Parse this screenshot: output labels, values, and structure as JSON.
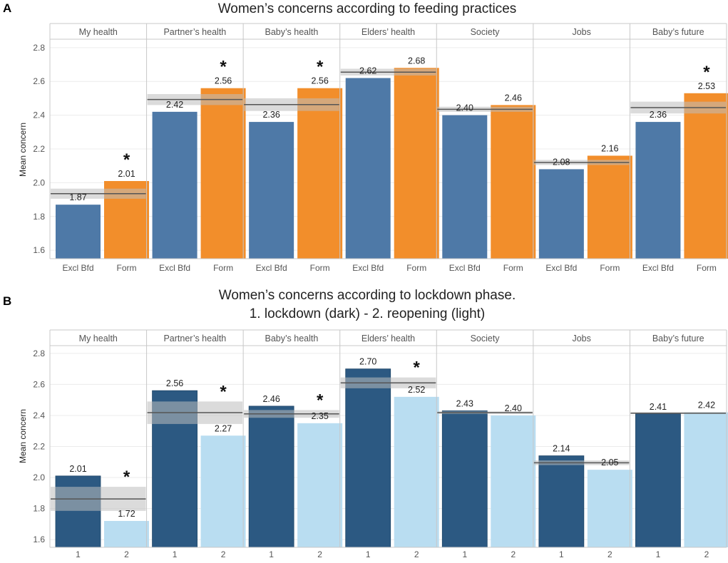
{
  "chart_data": [
    {
      "type": "bar",
      "panel_label": "A",
      "title_lines": [
        "Women’s concerns according to feeding practices"
      ],
      "ylabel": "Mean concern",
      "ylim": [
        1.55,
        2.85
      ],
      "yticks": [
        "1.6",
        "1.8",
        "2.0",
        "2.2",
        "2.4",
        "2.6",
        "2.8"
      ],
      "categories": [
        "Excl Bfd",
        "Form"
      ],
      "colors": [
        "#4e79a7",
        "#f28e2b"
      ],
      "facets": [
        {
          "name": "My health",
          "values": [
            1.87,
            2.01
          ],
          "labels": [
            "1.87",
            "2.01"
          ],
          "mean": 1.935,
          "band": [
            1.905,
            1.965
          ],
          "star": "*",
          "star_index": 1
        },
        {
          "name": "Partner’s health",
          "values": [
            2.42,
            2.56
          ],
          "labels": [
            "2.42",
            "2.56"
          ],
          "mean": 2.493,
          "band": [
            2.46,
            2.525
          ],
          "star": "*",
          "star_index": 1
        },
        {
          "name": "Baby’s health",
          "values": [
            2.36,
            2.56
          ],
          "labels": [
            "2.36",
            "2.56"
          ],
          "mean": 2.463,
          "band": [
            2.425,
            2.5
          ],
          "star": "*",
          "star_index": 1
        },
        {
          "name": "Elders’ health",
          "values": [
            2.62,
            2.68
          ],
          "labels": [
            "2.62",
            "2.68"
          ],
          "mean": 2.655,
          "band": [
            2.635,
            2.675
          ],
          "star": "",
          "star_index": 1
        },
        {
          "name": "Society",
          "values": [
            2.4,
            2.46
          ],
          "labels": [
            "2.40",
            "2.46"
          ],
          "mean": 2.435,
          "band": [
            2.42,
            2.45
          ],
          "star": "",
          "star_index": 1
        },
        {
          "name": "Jobs",
          "values": [
            2.08,
            2.16
          ],
          "labels": [
            "2.08",
            "2.16"
          ],
          "mean": 2.12,
          "band": [
            2.105,
            2.135
          ],
          "star": "",
          "star_index": 1
        },
        {
          "name": "Baby’s future",
          "values": [
            2.36,
            2.53
          ],
          "labels": [
            "2.36",
            "2.53"
          ],
          "mean": 2.445,
          "band": [
            2.41,
            2.48
          ],
          "star": "*",
          "star_index": 1
        }
      ]
    },
    {
      "type": "bar",
      "panel_label": "B",
      "title_lines": [
        "Women’s concerns according to lockdown phase.",
        "1. lockdown (dark) - 2. reopening (light)"
      ],
      "ylabel": "Mean concern",
      "ylim": [
        1.55,
        2.85
      ],
      "yticks": [
        "1.6",
        "1.8",
        "2.0",
        "2.2",
        "2.4",
        "2.6",
        "2.8"
      ],
      "categories": [
        "1",
        "2"
      ],
      "colors": [
        "#2c5982",
        "#b9ddf1"
      ],
      "facets": [
        {
          "name": "My health",
          "values": [
            2.01,
            1.72
          ],
          "labels": [
            "2.01",
            "1.72"
          ],
          "mean": 1.862,
          "band": [
            1.785,
            1.94
          ],
          "star": "*",
          "star_index": 1
        },
        {
          "name": "Partner’s health",
          "values": [
            2.56,
            2.27
          ],
          "labels": [
            "2.56",
            "2.27"
          ],
          "mean": 2.418,
          "band": [
            2.345,
            2.49
          ],
          "star": "*",
          "star_index": 1
        },
        {
          "name": "Baby’s health",
          "values": [
            2.46,
            2.35
          ],
          "labels": [
            "2.46",
            "2.35"
          ],
          "mean": 2.41,
          "band": [
            2.385,
            2.435
          ],
          "star": "*",
          "star_index": 1
        },
        {
          "name": "Elders’ health",
          "values": [
            2.7,
            2.52
          ],
          "labels": [
            "2.70",
            "2.52"
          ],
          "mean": 2.61,
          "band": [
            2.575,
            2.645
          ],
          "star": "*",
          "star_index": 1
        },
        {
          "name": "Society",
          "values": [
            2.43,
            2.4
          ],
          "labels": [
            "2.43",
            "2.40"
          ],
          "mean": 2.418,
          "band": [
            2.41,
            2.426
          ],
          "star": "",
          "star_index": 1
        },
        {
          "name": "Jobs",
          "values": [
            2.14,
            2.05
          ],
          "labels": [
            "2.14",
            "2.05"
          ],
          "mean": 2.095,
          "band": [
            2.08,
            2.11
          ],
          "star": "",
          "star_index": 1
        },
        {
          "name": "Baby’s future",
          "values": [
            2.41,
            2.42
          ],
          "labels": [
            "2.41",
            "2.42"
          ],
          "mean": 2.415,
          "band": [
            2.41,
            2.42
          ],
          "star": "",
          "star_index": 1
        }
      ]
    }
  ]
}
